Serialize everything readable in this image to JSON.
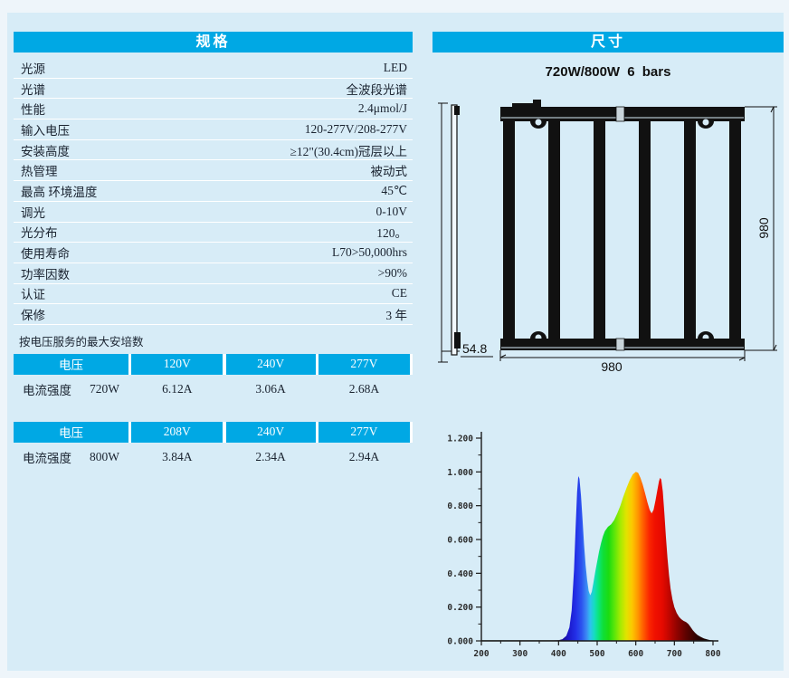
{
  "page": {
    "background": "#d7ecf7",
    "accent": "#00a8e4"
  },
  "left": {
    "header": "规格",
    "spec_rows": [
      {
        "label": "光源",
        "value": "LED"
      },
      {
        "label": "光谱",
        "value": "全波段光谱"
      },
      {
        "label": "性能",
        "value": "2.4μmol/J"
      },
      {
        "label": "输入电压",
        "value": "120-277V/208-277V"
      },
      {
        "label": "安装高度",
        "value": "≥12\"(30.4cm)冠层以上"
      },
      {
        "label": "热管理",
        "value": "被动式"
      },
      {
        "label": "最高 环境温度",
        "value": "45℃"
      },
      {
        "label": "调光",
        "value": "0-10V"
      },
      {
        "label": "光分布",
        "value": "120。"
      },
      {
        "label": "使用寿命",
        "value": "L70>50,000hrs"
      },
      {
        "label": "功率因数",
        "value": ">90%"
      },
      {
        "label": "认证",
        "value": "CE"
      },
      {
        "label": "保修",
        "value": "3 年"
      }
    ],
    "amps_note": "按电压服务的最大安培数",
    "amp_tables": [
      {
        "headers": [
          "电压",
          "120V",
          "240V",
          "277V"
        ],
        "row_label": "电流强度",
        "wattage": "720W",
        "values": [
          "6.12A",
          "3.06A",
          "2.68A"
        ]
      },
      {
        "headers": [
          "电压",
          "208V",
          "240V",
          "277V"
        ],
        "row_label": "电流强度",
        "wattage": "800W",
        "values": [
          "3.84A",
          "2.34A",
          "2.94A"
        ]
      }
    ]
  },
  "right": {
    "header": "尺寸",
    "drawing_title": "720W/800W 6 bars",
    "dimensions": {
      "width": "980",
      "height": "980",
      "bar_depth": "54.8"
    }
  },
  "chart_data": {
    "type": "area",
    "title": "",
    "xlabel": "",
    "ylabel": "",
    "xlim": [
      200,
      800
    ],
    "ylim": [
      0,
      1.2
    ],
    "x_tick_labels": [
      "200",
      "300",
      "400",
      "500",
      "600",
      "700",
      "800"
    ],
    "y_tick_labels": [
      "1.200",
      "1.000",
      "0.800",
      "0.600",
      "0.400",
      "0.200",
      "0.000"
    ],
    "grid": false,
    "legend": false,
    "series": [
      {
        "name": "relative spectral intensity",
        "points": [
          [
            200,
            0.002
          ],
          [
            380,
            0.002
          ],
          [
            400,
            0.004
          ],
          [
            410,
            0.01
          ],
          [
            420,
            0.03
          ],
          [
            428,
            0.08
          ],
          [
            434,
            0.18
          ],
          [
            440,
            0.42
          ],
          [
            444,
            0.66
          ],
          [
            448,
            0.88
          ],
          [
            451,
            0.975
          ],
          [
            454,
            0.96
          ],
          [
            458,
            0.86
          ],
          [
            462,
            0.72
          ],
          [
            466,
            0.57
          ],
          [
            470,
            0.45
          ],
          [
            474,
            0.36
          ],
          [
            478,
            0.295
          ],
          [
            482,
            0.27
          ],
          [
            486,
            0.29
          ],
          [
            490,
            0.34
          ],
          [
            495,
            0.41
          ],
          [
            500,
            0.47
          ],
          [
            505,
            0.53
          ],
          [
            510,
            0.58
          ],
          [
            515,
            0.62
          ],
          [
            520,
            0.65
          ],
          [
            528,
            0.675
          ],
          [
            536,
            0.69
          ],
          [
            544,
            0.715
          ],
          [
            552,
            0.755
          ],
          [
            560,
            0.8
          ],
          [
            568,
            0.855
          ],
          [
            576,
            0.905
          ],
          [
            584,
            0.95
          ],
          [
            592,
            0.985
          ],
          [
            600,
            1.0
          ],
          [
            606,
            0.995
          ],
          [
            612,
            0.965
          ],
          [
            618,
            0.925
          ],
          [
            624,
            0.875
          ],
          [
            630,
            0.82
          ],
          [
            636,
            0.775
          ],
          [
            641,
            0.755
          ],
          [
            646,
            0.775
          ],
          [
            651,
            0.83
          ],
          [
            656,
            0.895
          ],
          [
            660,
            0.945
          ],
          [
            663,
            0.965
          ],
          [
            666,
            0.955
          ],
          [
            670,
            0.885
          ],
          [
            674,
            0.76
          ],
          [
            678,
            0.62
          ],
          [
            682,
            0.49
          ],
          [
            686,
            0.39
          ],
          [
            690,
            0.31
          ],
          [
            695,
            0.245
          ],
          [
            700,
            0.2
          ],
          [
            706,
            0.165
          ],
          [
            712,
            0.142
          ],
          [
            718,
            0.128
          ],
          [
            724,
            0.118
          ],
          [
            730,
            0.112
          ],
          [
            736,
            0.1
          ],
          [
            742,
            0.082
          ],
          [
            748,
            0.062
          ],
          [
            754,
            0.047
          ],
          [
            760,
            0.035
          ],
          [
            768,
            0.024
          ],
          [
            776,
            0.015
          ],
          [
            784,
            0.009
          ],
          [
            792,
            0.005
          ],
          [
            800,
            0.003
          ]
        ]
      }
    ],
    "gradient_stops": [
      {
        "wl": 400,
        "color": "#14086b"
      },
      {
        "wl": 425,
        "color": "#1b16c9"
      },
      {
        "wl": 445,
        "color": "#2330e8"
      },
      {
        "wl": 460,
        "color": "#2c55ef"
      },
      {
        "wl": 472,
        "color": "#3c86f4"
      },
      {
        "wl": 482,
        "color": "#2fc0f0"
      },
      {
        "wl": 492,
        "color": "#16dcc3"
      },
      {
        "wl": 502,
        "color": "#0ce584"
      },
      {
        "wl": 515,
        "color": "#0fdf3a"
      },
      {
        "wl": 530,
        "color": "#1cdc10"
      },
      {
        "wl": 545,
        "color": "#5ce60a"
      },
      {
        "wl": 560,
        "color": "#a4ea02"
      },
      {
        "wl": 575,
        "color": "#e0e400"
      },
      {
        "wl": 590,
        "color": "#fcc800"
      },
      {
        "wl": 605,
        "color": "#ff9800"
      },
      {
        "wl": 620,
        "color": "#ff5a00"
      },
      {
        "wl": 635,
        "color": "#fa2600"
      },
      {
        "wl": 650,
        "color": "#f01000"
      },
      {
        "wl": 668,
        "color": "#e60a00"
      },
      {
        "wl": 685,
        "color": "#c40600"
      },
      {
        "wl": 705,
        "color": "#940300"
      },
      {
        "wl": 730,
        "color": "#5e0200"
      },
      {
        "wl": 760,
        "color": "#2a0100"
      },
      {
        "wl": 800,
        "color": "#000000"
      }
    ]
  }
}
